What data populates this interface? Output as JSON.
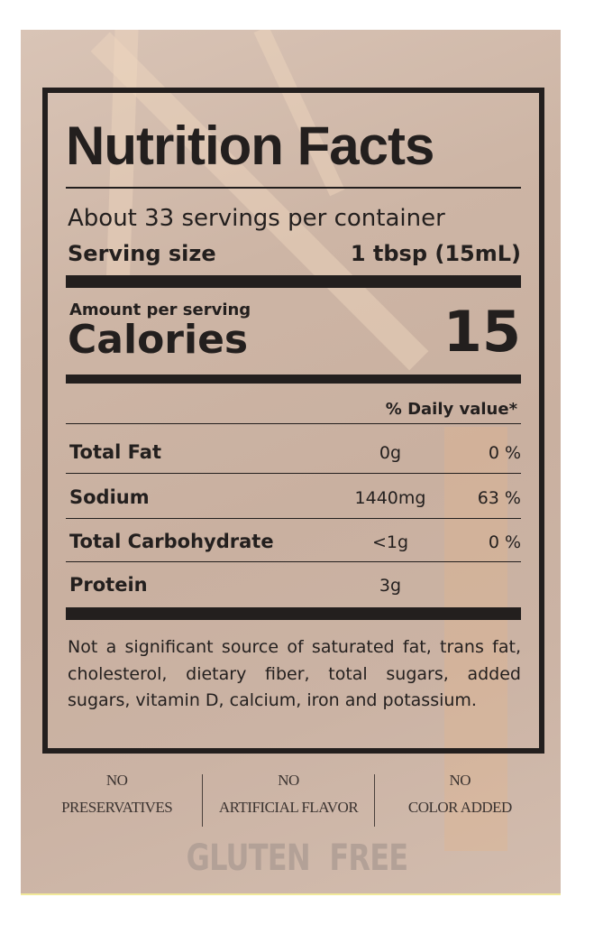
{
  "label": {
    "title": "Nutrition Facts",
    "servings_per_container": "About 33 servings per container",
    "serving_size_label": "Serving size",
    "serving_size_value": "1 tbsp (15mL)",
    "amount_per_serving": "Amount per serving",
    "calories_label": "Calories",
    "calories_value": "15",
    "daily_value_header": "% Daily value*",
    "nutrients": [
      {
        "name": "Total Fat",
        "amount": "0g",
        "dv": "0 %"
      },
      {
        "name": "Sodium",
        "amount": "1440mg",
        "dv": "63 %"
      },
      {
        "name": "Total Carbohydrate",
        "amount": "<1g",
        "dv": "0 %"
      },
      {
        "name": "Protein",
        "amount": "3g",
        "dv": ""
      }
    ],
    "footnote": "Not a significant source of saturated fat, trans fat, cholesterol, dietary fiber, total sugars, added sugars, vitamin D, calcium, iron and potassium."
  },
  "claims": [
    {
      "line1": "NO",
      "line2": "PRESERVATIVES"
    },
    {
      "line1": "NO",
      "line2": "ARTIFICIAL FLAVOR"
    },
    {
      "line1": "NO",
      "line2": "COLOR ADDED"
    }
  ],
  "gluten_free": "GLUTEN FREE"
}
